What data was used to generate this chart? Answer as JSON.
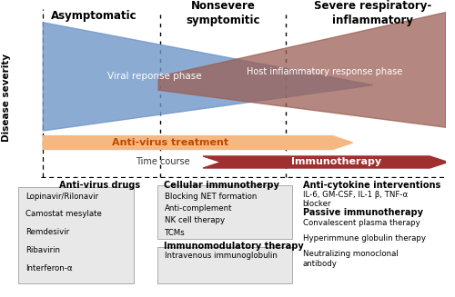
{
  "bg_color": "#ffffff",
  "viral_phase_color": "#7096c8",
  "inflammatory_phase_color": "#9b6055",
  "antivirus_arrow_color": "#f5b882",
  "immunotherapy_arrow_color": "#a03030",
  "viral_phase_label": "Viral reponse phase",
  "inflammatory_phase_label": "Host inflammatory response phase",
  "antivirus_label": "Anti-virus treatment",
  "immunotherapy_label": "Immunotherapy",
  "timecourse_label": "Time course",
  "phase_labels": [
    "Asymptomatic",
    "Nonsevere\nsymptomitic",
    "Severe respiratory-\ninflammatory"
  ],
  "disease_severity_label": "Disease severity",
  "col1_title": "Anti-virus drugs",
  "col1_items": [
    "Lopinavir/Rilonavir",
    "Camostat mesylate",
    "Remdesivir",
    "Ribavirin",
    "Interferon-α"
  ],
  "col2_title1": "Cellular immunotherpy",
  "col2_items1": [
    "Blocking NET formation",
    "Anti-complement",
    "NK cell therapy",
    "TCMs"
  ],
  "col2_title2": "Immunomodulatory therapy",
  "col2_items2": [
    "Intravenous immunoglobulin"
  ],
  "col3_title": "Anti-cytokine interventions",
  "col3_items1_line1": "IL-6, GM-CSF, IL-1 β, TNF-α",
  "col3_items1_line2": "blocker",
  "col3_title2": "Passive immunotherapy",
  "col3_items2": [
    "Convalescent plasma therapy",
    "Hyperimmune globulin therapy",
    "Neutralizing monoclonal\nantibody"
  ],
  "box_color": "#e8e8e8",
  "box_edge_color": "#aaaaaa"
}
